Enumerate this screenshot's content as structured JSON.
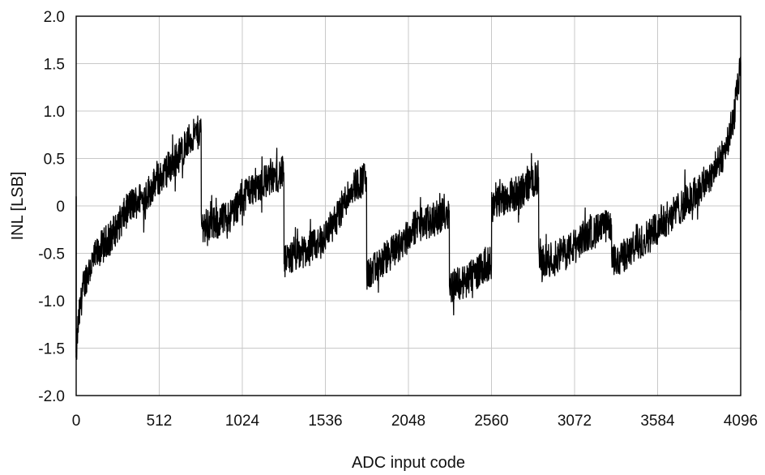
{
  "chart_data": {
    "type": "line",
    "title": "",
    "xlabel": "ADC input code",
    "ylabel": "INL [LSB]",
    "xlim": [
      0,
      4096
    ],
    "ylim": [
      -2.0,
      2.0
    ],
    "x_ticks": [
      0,
      512,
      1024,
      1536,
      2048,
      2560,
      3072,
      3584,
      4096
    ],
    "x_tick_labels": [
      "0",
      "512",
      "1024",
      "1536",
      "2048",
      "2560",
      "3072",
      "3584",
      "4096"
    ],
    "y_ticks": [
      -2.0,
      -1.5,
      -1.0,
      -0.5,
      0,
      0.5,
      1.0,
      1.5,
      2.0
    ],
    "y_tick_labels": [
      "-2.0",
      "-1.5",
      "-1.0",
      "-0.5",
      "0",
      "0.5",
      "1.0",
      "1.5",
      "2.0"
    ],
    "grid": true,
    "line_color": "#000000",
    "series": [
      {
        "x": [
          0,
          10,
          30,
          60,
          100,
          150,
          200,
          260,
          330,
          420,
          520,
          620,
          700,
          770,
          771,
          850,
          950,
          1050,
          1150,
          1280,
          1281,
          1380,
          1500,
          1600,
          1700,
          1790,
          1791,
          1880,
          2000,
          2100,
          2200,
          2300,
          2301,
          2400,
          2500,
          2560,
          2561,
          2650,
          2750,
          2800,
          2850,
          2851,
          2950,
          3050,
          3150,
          3300,
          3301,
          3400,
          3500,
          3600,
          3700,
          3800,
          3900,
          3980,
          4050,
          4090,
          4096
        ],
        "y": [
          -1.6,
          -1.3,
          -1.0,
          -0.75,
          -0.6,
          -0.45,
          -0.35,
          -0.2,
          0.0,
          0.1,
          0.3,
          0.5,
          0.7,
          0.8,
          -0.2,
          -0.2,
          -0.1,
          0.15,
          0.25,
          0.35,
          -0.6,
          -0.5,
          -0.4,
          -0.15,
          0.2,
          0.3,
          -0.75,
          -0.6,
          -0.4,
          -0.2,
          -0.15,
          -0.05,
          -0.85,
          -0.8,
          -0.65,
          -0.6,
          0.0,
          0.1,
          0.15,
          0.25,
          0.3,
          -0.6,
          -0.55,
          -0.45,
          -0.3,
          -0.2,
          -0.6,
          -0.5,
          -0.35,
          -0.2,
          -0.05,
          0.1,
          0.3,
          0.5,
          0.9,
          1.4,
          1.5
        ],
        "noise_amplitude": 0.18
      }
    ]
  }
}
